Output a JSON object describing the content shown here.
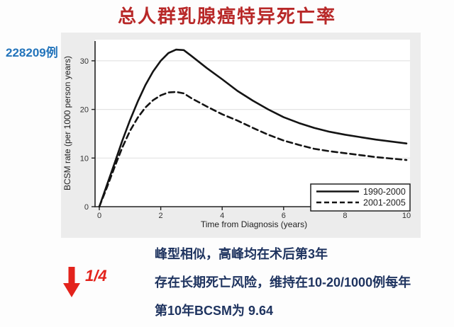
{
  "slide": {
    "title": "总人群乳腺癌特异死亡率",
    "case_count": "228209例",
    "arrow": {
      "direction": "down",
      "label": "1/4"
    },
    "notes": [
      "峰型相似，高峰均在术后第3年",
      "存在长期死亡风险，维持在10-20/1000例每年",
      "第10年BCSM为 9.64"
    ]
  },
  "colors": {
    "title_red": "#b82828",
    "case_count_blue": "#2374bb",
    "note_navy": "#1e335f",
    "arrow_red": "#e3231c",
    "panel_gray": "#ececec",
    "plot_white": "#ffffff",
    "curve_black": "#141414",
    "grid_gray": "#e3e3e3"
  },
  "chart_data": {
    "type": "line",
    "title": "",
    "xlabel": "Time from Diagnosis (years)",
    "ylabel": "BCSM rate (per 1000 person years)",
    "xlim": [
      0,
      10
    ],
    "ylim": [
      0,
      33
    ],
    "xticks": [
      0,
      2,
      4,
      6,
      8,
      10
    ],
    "yticks": [
      0,
      10,
      20,
      30
    ],
    "grid": "horizontal",
    "legend_position": "bottom-right",
    "x": [
      0,
      0.25,
      0.5,
      0.75,
      1,
      1.25,
      1.5,
      1.75,
      2,
      2.25,
      2.5,
      2.75,
      3,
      3.5,
      4,
      4.5,
      5,
      5.5,
      6,
      6.5,
      7,
      7.5,
      8,
      8.5,
      9,
      9.5,
      10
    ],
    "series": [
      {
        "name": "1990-2000",
        "style": "solid",
        "values": [
          0,
          4.5,
          9.0,
          13.6,
          17.8,
          21.6,
          25.0,
          27.8,
          30.0,
          31.6,
          32.3,
          32.2,
          31.0,
          28.5,
          26.2,
          23.8,
          21.8,
          20.0,
          18.4,
          17.2,
          16.2,
          15.4,
          14.8,
          14.3,
          13.8,
          13.4,
          13.0
        ]
      },
      {
        "name": "2001-2005",
        "style": "dashed",
        "values": [
          0,
          4.0,
          8.2,
          12.2,
          15.6,
          18.3,
          20.4,
          21.9,
          22.9,
          23.5,
          23.6,
          23.3,
          22.3,
          20.6,
          19.0,
          17.7,
          16.2,
          14.8,
          13.6,
          12.7,
          11.9,
          11.4,
          11.0,
          10.6,
          10.2,
          9.9,
          9.6
        ]
      }
    ]
  }
}
